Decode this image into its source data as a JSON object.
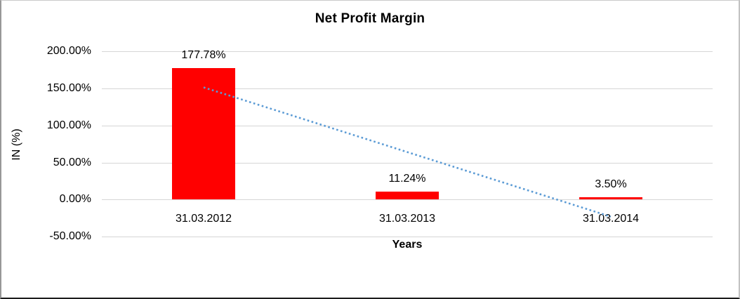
{
  "chart_data": {
    "type": "bar",
    "title": "Net Profit Margin",
    "xlabel": "Years",
    "ylabel": "IN (%)",
    "categories": [
      "31.03.2012",
      "31.03.2013",
      "31.03.2014"
    ],
    "values": [
      177.78,
      11.24,
      3.5
    ],
    "data_labels": [
      "177.78%",
      "11.24%",
      "3.50%"
    ],
    "y_ticks": [
      200,
      150,
      100,
      50,
      0,
      -50
    ],
    "y_tick_labels": [
      "200.00%",
      "150.00%",
      "100.00%",
      "50.00%",
      "0.00%",
      "-50.00%"
    ],
    "ylim": [
      -50,
      200
    ],
    "grid": true,
    "legend": "none",
    "bar_color": "#ff0000",
    "gridline_color": "#d6d6d6",
    "text_color": "#000000",
    "trendline": {
      "type": "linear",
      "style": "dotted",
      "color": "#5b9bd5"
    }
  }
}
